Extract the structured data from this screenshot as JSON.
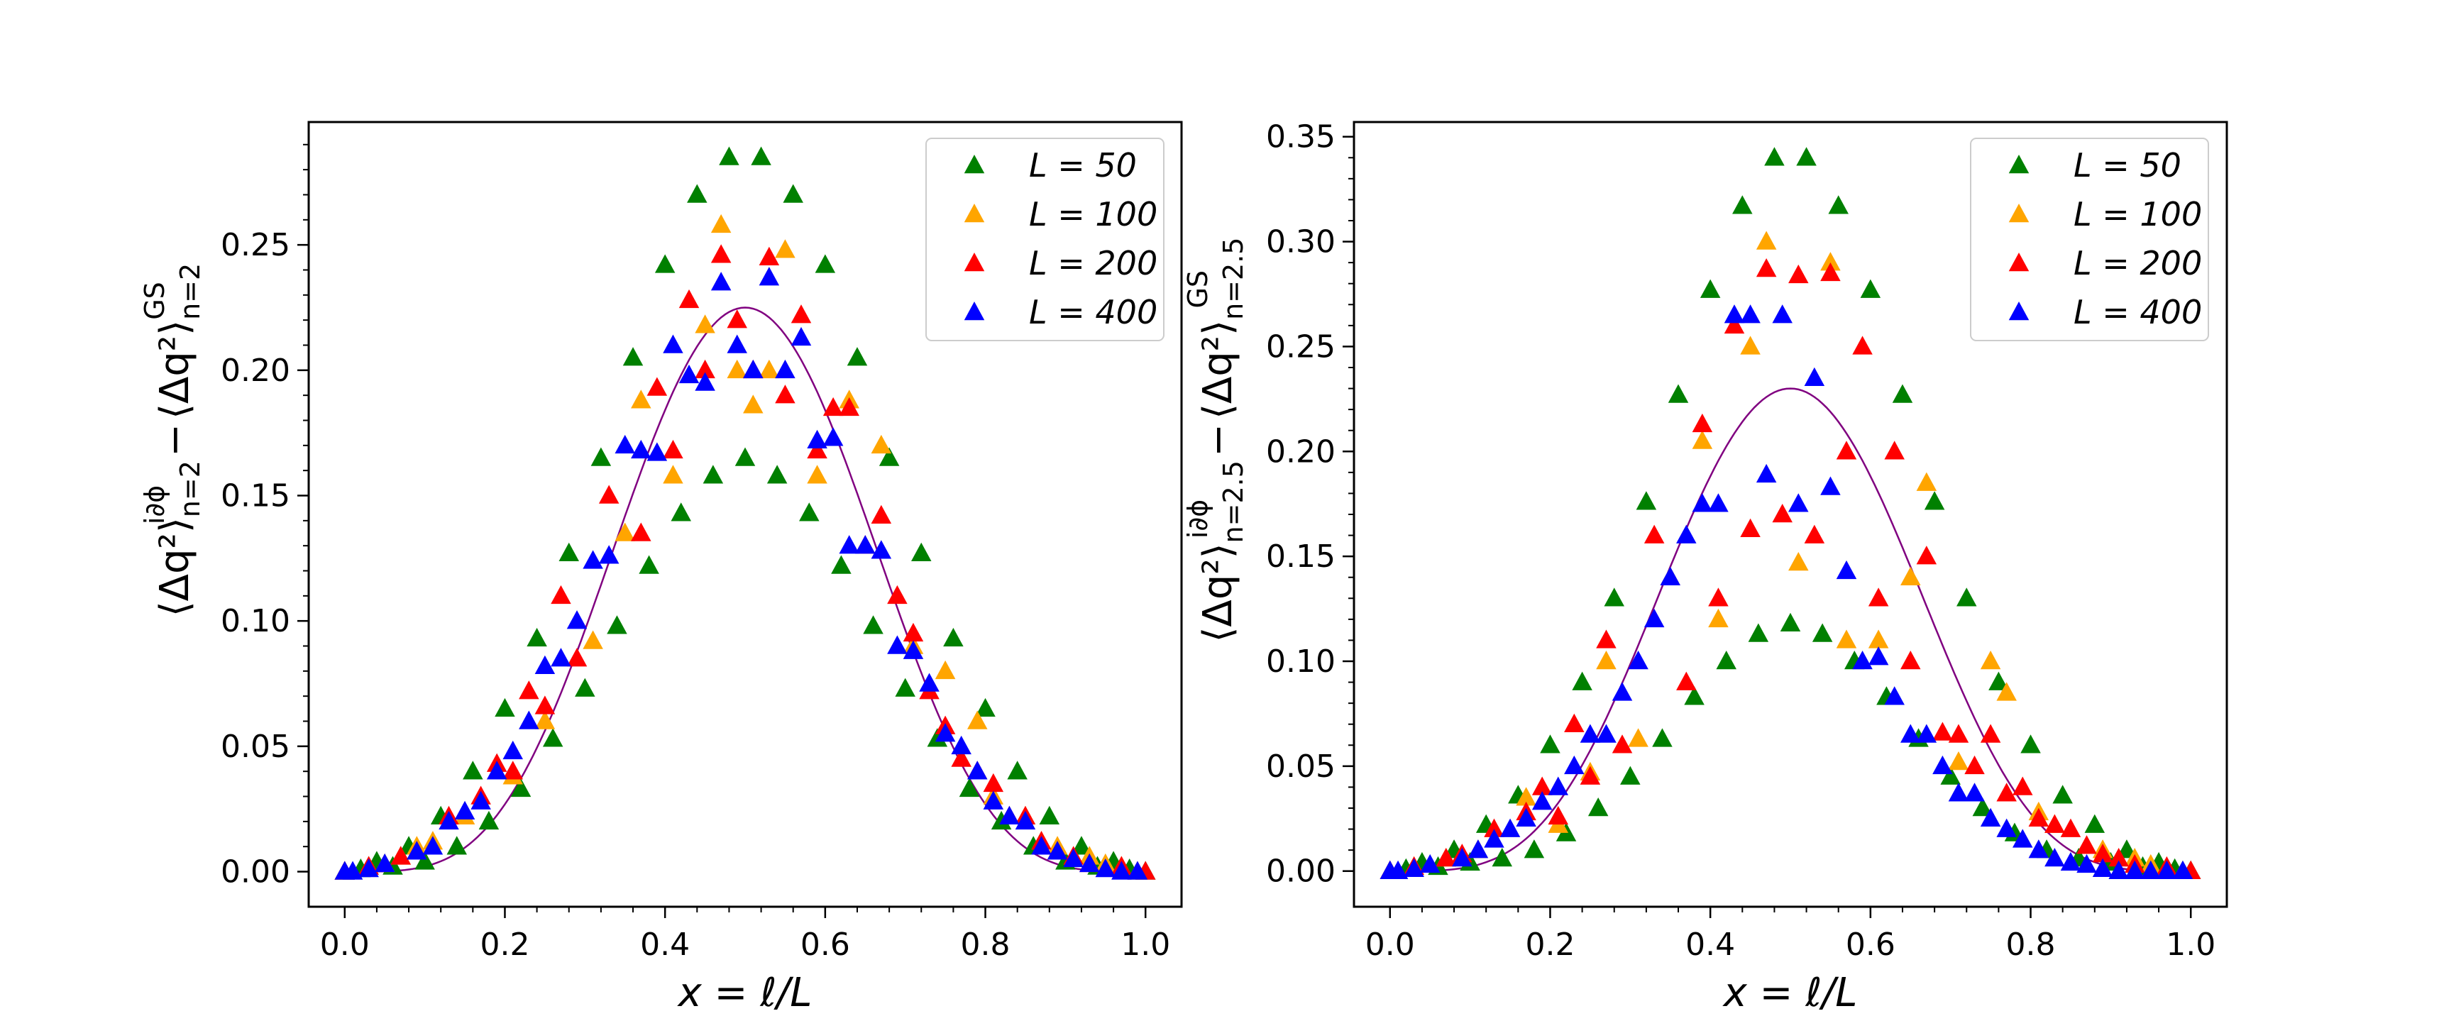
{
  "figure": {
    "panels": [
      {
        "ylabel_main": "⟨Δq²⟩",
        "ylabel_sup1": "i∂ϕ",
        "ylabel_sub1": "n=2",
        "ylabel_minus": "−",
        "ylabel_sup2": "GS",
        "ylabel_sub2": "n=2"
      },
      {
        "ylabel_main": "⟨Δq²⟩",
        "ylabel_sup1": "i∂ϕ",
        "ylabel_sub1": "n=2.5",
        "ylabel_minus": "−",
        "ylabel_sup2": "GS",
        "ylabel_sub2": "n=2.5"
      }
    ]
  },
  "chart_data": [
    {
      "type": "scatter",
      "title": "",
      "xlabel": "x = ℓ/L",
      "ylabel": "⟨Δq²⟩^{i∂ϕ}_{n=2} − ⟨Δq²⟩^{GS}_{n=2}",
      "xlim": [
        -0.045,
        1.045
      ],
      "ylim": [
        -0.014,
        0.299
      ],
      "xticks": [
        "0.0",
        "0.2",
        "0.4",
        "0.6",
        "0.8",
        "1.0"
      ],
      "xtick_values": [
        0,
        0.2,
        0.4,
        0.6,
        0.8,
        1.0
      ],
      "yticks": [
        "0.00",
        "0.05",
        "0.10",
        "0.15",
        "0.20",
        "0.25"
      ],
      "ytick_values": [
        0,
        0.05,
        0.1,
        0.15,
        0.2,
        0.25
      ],
      "legend_position": "top-right",
      "series": [
        {
          "name": "L = 50",
          "color": "#008000",
          "x": [
            0,
            0.02,
            0.04,
            0.06,
            0.08,
            0.1,
            0.12,
            0.14,
            0.16,
            0.18,
            0.2,
            0.22,
            0.24,
            0.26,
            0.28,
            0.3,
            0.32,
            0.34,
            0.36,
            0.38,
            0.4,
            0.42,
            0.44,
            0.46,
            0.48,
            0.5,
            0.52,
            0.54,
            0.56,
            0.58,
            0.6,
            0.62,
            0.64,
            0.66,
            0.68,
            0.7,
            0.72,
            0.74,
            0.76,
            0.78,
            0.8,
            0.82,
            0.84,
            0.86,
            0.88,
            0.9,
            0.92,
            0.94,
            0.96,
            0.98,
            1.0
          ],
          "y": [
            0,
            0.001,
            0.004,
            0.002,
            0.01,
            0.004,
            0.022,
            0.01,
            0.04,
            0.02,
            0.065,
            0.033,
            0.093,
            0.053,
            0.127,
            0.073,
            0.165,
            0.098,
            0.205,
            0.122,
            0.242,
            0.143,
            0.27,
            0.158,
            0.285,
            0.165,
            0.285,
            0.158,
            0.27,
            0.143,
            0.242,
            0.122,
            0.205,
            0.098,
            0.165,
            0.073,
            0.127,
            0.053,
            0.093,
            0.033,
            0.065,
            0.02,
            0.04,
            0.01,
            0.022,
            0.004,
            0.01,
            0.002,
            0.004,
            0.001,
            0
          ]
        },
        {
          "name": "L = 100",
          "color": "#FFA500",
          "x": [
            0,
            0.03,
            0.05,
            0.07,
            0.09,
            0.11,
            0.15,
            0.21,
            0.25,
            0.31,
            0.35,
            0.37,
            0.41,
            0.45,
            0.47,
            0.49,
            0.51,
            0.53,
            0.55,
            0.59,
            0.63,
            0.67,
            0.71,
            0.75,
            0.79,
            0.81,
            0.85,
            0.87,
            0.89,
            0.93,
            0.95,
            0.97,
            0.99
          ],
          "y": [
            0,
            0.002,
            0.003,
            0.006,
            0.01,
            0.012,
            0.022,
            0.038,
            0.06,
            0.092,
            0.135,
            0.188,
            0.158,
            0.218,
            0.258,
            0.2,
            0.186,
            0.2,
            0.248,
            0.158,
            0.188,
            0.17,
            0.09,
            0.08,
            0.06,
            0.03,
            0.022,
            0.012,
            0.01,
            0.006,
            0.003,
            0.002,
            0
          ]
        },
        {
          "name": "L = 200",
          "color": "#FF0000",
          "x": [
            0,
            0.03,
            0.07,
            0.09,
            0.13,
            0.17,
            0.19,
            0.21,
            0.23,
            0.25,
            0.27,
            0.29,
            0.33,
            0.37,
            0.39,
            0.41,
            0.43,
            0.45,
            0.47,
            0.49,
            0.51,
            0.53,
            0.55,
            0.57,
            0.59,
            0.61,
            0.63,
            0.65,
            0.67,
            0.69,
            0.71,
            0.73,
            0.75,
            0.77,
            0.79,
            0.81,
            0.83,
            0.85,
            0.87,
            0.89,
            0.91,
            0.93,
            0.97,
            1.0
          ],
          "y": [
            0,
            0.002,
            0.006,
            0.008,
            0.022,
            0.03,
            0.043,
            0.04,
            0.072,
            0.066,
            0.11,
            0.085,
            0.15,
            0.135,
            0.193,
            0.168,
            0.228,
            0.2,
            0.246,
            0.22,
            0.2,
            0.245,
            0.19,
            0.222,
            0.168,
            0.185,
            0.185,
            0.13,
            0.142,
            0.11,
            0.095,
            0.072,
            0.058,
            0.045,
            0.04,
            0.035,
            0.022,
            0.022,
            0.012,
            0.008,
            0.006,
            0.003,
            0.002,
            0
          ]
        },
        {
          "name": "L = 400",
          "color": "#0000FF",
          "x": [
            0,
            0.01,
            0.03,
            0.05,
            0.09,
            0.11,
            0.13,
            0.15,
            0.17,
            0.19,
            0.21,
            0.23,
            0.25,
            0.27,
            0.29,
            0.31,
            0.33,
            0.35,
            0.37,
            0.39,
            0.41,
            0.43,
            0.45,
            0.47,
            0.49,
            0.51,
            0.53,
            0.55,
            0.57,
            0.59,
            0.61,
            0.63,
            0.65,
            0.67,
            0.69,
            0.71,
            0.73,
            0.75,
            0.77,
            0.79,
            0.81,
            0.83,
            0.85,
            0.87,
            0.89,
            0.91,
            0.93,
            0.95,
            0.97,
            0.99
          ],
          "y": [
            0,
            0.0,
            0.001,
            0.003,
            0.008,
            0.01,
            0.02,
            0.024,
            0.028,
            0.04,
            0.048,
            0.06,
            0.082,
            0.085,
            0.1,
            0.124,
            0.126,
            0.17,
            0.168,
            0.167,
            0.21,
            0.198,
            0.195,
            0.235,
            0.21,
            0.2,
            0.237,
            0.2,
            0.213,
            0.172,
            0.173,
            0.13,
            0.13,
            0.128,
            0.09,
            0.088,
            0.075,
            0.055,
            0.05,
            0.04,
            0.028,
            0.022,
            0.02,
            0.01,
            0.008,
            0.005,
            0.003,
            0.001,
            0.0,
            0
          ]
        }
      ],
      "curve": {
        "color": "#800080",
        "amplitude": 0.225
      }
    },
    {
      "type": "scatter",
      "title": "",
      "xlabel": "x = ℓ/L",
      "ylabel": "⟨Δq²⟩^{i∂ϕ}_{n=2.5} − ⟨Δq²⟩^{GS}_{n=2.5}",
      "xlim": [
        -0.045,
        1.045
      ],
      "ylim": [
        -0.017,
        0.357
      ],
      "xticks": [
        "0.0",
        "0.2",
        "0.4",
        "0.6",
        "0.8",
        "1.0"
      ],
      "xtick_values": [
        0,
        0.2,
        0.4,
        0.6,
        0.8,
        1.0
      ],
      "yticks": [
        "0.00",
        "0.05",
        "0.10",
        "0.15",
        "0.20",
        "0.25",
        "0.30",
        "0.35"
      ],
      "ytick_values": [
        0,
        0.05,
        0.1,
        0.15,
        0.2,
        0.25,
        0.3,
        0.35
      ],
      "legend_position": "top-right",
      "series": [
        {
          "name": "L = 50",
          "color": "#008000",
          "x": [
            0,
            0.02,
            0.04,
            0.06,
            0.08,
            0.1,
            0.12,
            0.14,
            0.16,
            0.18,
            0.2,
            0.22,
            0.24,
            0.26,
            0.28,
            0.3,
            0.32,
            0.34,
            0.36,
            0.38,
            0.4,
            0.42,
            0.44,
            0.46,
            0.48,
            0.5,
            0.52,
            0.54,
            0.56,
            0.58,
            0.6,
            0.62,
            0.64,
            0.66,
            0.68,
            0.7,
            0.72,
            0.74,
            0.76,
            0.78,
            0.8,
            0.82,
            0.84,
            0.86,
            0.88,
            0.9,
            0.92,
            0.94,
            0.96,
            0.98,
            1.0
          ],
          "y": [
            0,
            0.001,
            0.004,
            0.002,
            0.01,
            0.004,
            0.022,
            0.006,
            0.036,
            0.01,
            0.06,
            0.018,
            0.09,
            0.03,
            0.13,
            0.045,
            0.176,
            0.063,
            0.227,
            0.083,
            0.277,
            0.1,
            0.317,
            0.113,
            0.34,
            0.118,
            0.34,
            0.113,
            0.317,
            0.1,
            0.277,
            0.083,
            0.227,
            0.063,
            0.176,
            0.045,
            0.13,
            0.03,
            0.09,
            0.018,
            0.06,
            0.01,
            0.036,
            0.006,
            0.022,
            0.004,
            0.01,
            0.002,
            0.004,
            0.001,
            0
          ]
        },
        {
          "name": "L = 100",
          "color": "#FFA500",
          "x": [
            0,
            0.03,
            0.07,
            0.11,
            0.17,
            0.21,
            0.25,
            0.27,
            0.31,
            0.35,
            0.39,
            0.41,
            0.45,
            0.47,
            0.51,
            0.55,
            0.57,
            0.61,
            0.65,
            0.67,
            0.71,
            0.75,
            0.77,
            0.81,
            0.83,
            0.87,
            0.89,
            0.93,
            0.95,
            0.99
          ],
          "y": [
            0,
            0.002,
            0.006,
            0.01,
            0.035,
            0.022,
            0.047,
            0.1,
            0.063,
            0.14,
            0.205,
            0.12,
            0.25,
            0.3,
            0.147,
            0.29,
            0.11,
            0.11,
            0.14,
            0.185,
            0.052,
            0.1,
            0.085,
            0.028,
            0.022,
            0.012,
            0.01,
            0.006,
            0.003,
            0
          ]
        },
        {
          "name": "L = 200",
          "color": "#FF0000",
          "x": [
            0,
            0.03,
            0.07,
            0.09,
            0.13,
            0.17,
            0.19,
            0.21,
            0.23,
            0.25,
            0.27,
            0.29,
            0.33,
            0.37,
            0.39,
            0.41,
            0.43,
            0.45,
            0.47,
            0.49,
            0.51,
            0.53,
            0.55,
            0.57,
            0.59,
            0.61,
            0.63,
            0.65,
            0.67,
            0.69,
            0.71,
            0.73,
            0.75,
            0.77,
            0.79,
            0.81,
            0.83,
            0.85,
            0.87,
            0.89,
            0.91,
            0.93,
            0.97,
            1.0
          ],
          "y": [
            0,
            0.002,
            0.006,
            0.008,
            0.02,
            0.028,
            0.04,
            0.026,
            0.07,
            0.045,
            0.11,
            0.06,
            0.16,
            0.09,
            0.213,
            0.13,
            0.26,
            0.163,
            0.287,
            0.17,
            0.284,
            0.16,
            0.285,
            0.2,
            0.25,
            0.13,
            0.2,
            0.1,
            0.15,
            0.066,
            0.065,
            0.05,
            0.065,
            0.037,
            0.04,
            0.025,
            0.022,
            0.02,
            0.012,
            0.008,
            0.006,
            0.003,
            0.002,
            0
          ]
        },
        {
          "name": "L = 400",
          "color": "#0000FF",
          "x": [
            0,
            0.01,
            0.03,
            0.05,
            0.09,
            0.11,
            0.13,
            0.15,
            0.17,
            0.19,
            0.21,
            0.23,
            0.25,
            0.27,
            0.29,
            0.31,
            0.33,
            0.35,
            0.37,
            0.39,
            0.41,
            0.43,
            0.45,
            0.47,
            0.49,
            0.51,
            0.53,
            0.55,
            0.57,
            0.59,
            0.61,
            0.63,
            0.65,
            0.67,
            0.69,
            0.71,
            0.73,
            0.75,
            0.77,
            0.79,
            0.81,
            0.83,
            0.85,
            0.87,
            0.89,
            0.91,
            0.93,
            0.95,
            0.97,
            0.99
          ],
          "y": [
            0,
            0.0,
            0.001,
            0.003,
            0.006,
            0.01,
            0.015,
            0.02,
            0.025,
            0.033,
            0.04,
            0.05,
            0.065,
            0.065,
            0.085,
            0.1,
            0.12,
            0.14,
            0.16,
            0.175,
            0.175,
            0.265,
            0.265,
            0.189,
            0.265,
            0.175,
            0.235,
            0.183,
            0.143,
            0.1,
            0.102,
            0.083,
            0.065,
            0.065,
            0.05,
            0.037,
            0.037,
            0.025,
            0.02,
            0.015,
            0.01,
            0.006,
            0.004,
            0.003,
            0.001,
            0.0,
            0.0,
            0.0,
            0.0,
            0
          ]
        }
      ],
      "curve": {
        "color": "#800080",
        "amplitude": 0.23
      }
    }
  ]
}
